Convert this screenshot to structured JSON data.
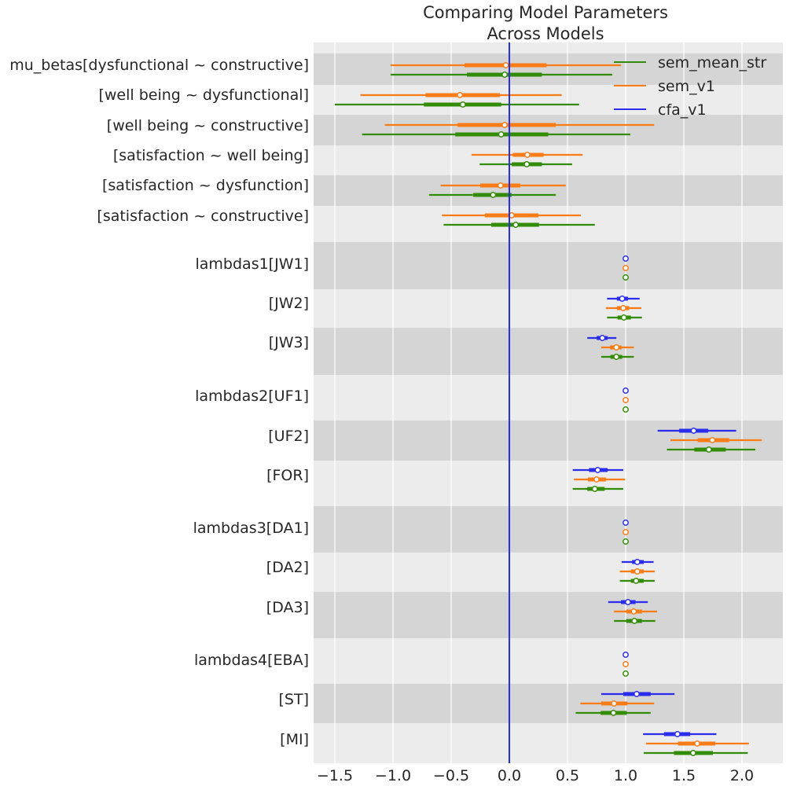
{
  "chart_data": {
    "type": "forest",
    "title": "Comparing Model Parameters\nAcross Models",
    "title_lines": [
      "Comparing Model Parameters",
      "Across Models"
    ],
    "xlabel": "",
    "ylabel": "",
    "xlim": [
      -1.65,
      2.35
    ],
    "xticks": [
      -1.5,
      -1.0,
      -0.5,
      0.0,
      0.5,
      1.0,
      1.5,
      2.0
    ],
    "xtick_labels": [
      "−1.5",
      "−1.0",
      "−0.5",
      "0.0",
      "0.5",
      "1.0",
      "1.5",
      "2.0"
    ],
    "grid": true,
    "reference_line": {
      "x": 0.0,
      "color": "#2a2eec"
    },
    "legend": {
      "position": "top-right",
      "entries": [
        {
          "name": "sem_mean_str",
          "color": "#328c06"
        },
        {
          "name": "sem_v1",
          "color": "#fa7c17"
        },
        {
          "name": "cfa_v1",
          "color": "#2a2eec"
        }
      ]
    },
    "colors": {
      "cfa_v1": "#2a2eec",
      "sem_v1": "#fa7c17",
      "sem_mean_str": "#328c06",
      "band_dark": "#d5d5d5",
      "band_light": "#ececec"
    },
    "rows": [
      {
        "label": "mu_betas[dysfunctional ~ constructive]",
        "group": "mu_betas",
        "shade": "dark",
        "estimates": {
          "sem_v1": {
            "lo": -1.02,
            "q1": -0.385,
            "mean": -0.03,
            "q3": 0.32,
            "hi": 0.96
          },
          "sem_mean_str": {
            "lo": -1.02,
            "q1": -0.365,
            "mean": -0.04,
            "q3": 0.28,
            "hi": 0.885
          }
        }
      },
      {
        "label": "[well being ~ dysfunctional]",
        "group": "mu_betas",
        "shade": "light",
        "estimates": {
          "sem_v1": {
            "lo": -1.28,
            "q1": -0.72,
            "mean": -0.425,
            "q3": -0.08,
            "hi": 0.45
          },
          "sem_mean_str": {
            "lo": -1.5,
            "q1": -0.735,
            "mean": -0.4,
            "q3": -0.07,
            "hi": 0.6
          }
        }
      },
      {
        "label": "[well being ~ constructive]",
        "group": "mu_betas",
        "shade": "dark",
        "estimates": {
          "sem_v1": {
            "lo": -1.07,
            "q1": -0.445,
            "mean": -0.04,
            "q3": 0.4,
            "hi": 1.245
          },
          "sem_mean_str": {
            "lo": -1.265,
            "q1": -0.465,
            "mean": -0.07,
            "q3": 0.335,
            "hi": 1.04
          }
        }
      },
      {
        "label": "[satisfaction ~ well being]",
        "group": "mu_betas",
        "shade": "light",
        "estimates": {
          "sem_v1": {
            "lo": -0.325,
            "q1": 0.03,
            "mean": 0.155,
            "q3": 0.295,
            "hi": 0.63
          },
          "sem_mean_str": {
            "lo": -0.255,
            "q1": 0.02,
            "mean": 0.15,
            "q3": 0.28,
            "hi": 0.54
          }
        }
      },
      {
        "label": "[satisfaction ~ dysfunction]",
        "group": "mu_betas",
        "shade": "dark",
        "estimates": {
          "sem_v1": {
            "lo": -0.59,
            "q1": -0.25,
            "mean": -0.075,
            "q3": 0.095,
            "hi": 0.485
          },
          "sem_mean_str": {
            "lo": -0.69,
            "q1": -0.31,
            "mean": -0.14,
            "q3": 0.02,
            "hi": 0.4
          }
        }
      },
      {
        "label": "[satisfaction ~ constructive]",
        "group": "mu_betas",
        "shade": "light",
        "estimates": {
          "sem_v1": {
            "lo": -0.58,
            "q1": -0.21,
            "mean": 0.02,
            "q3": 0.25,
            "hi": 0.615
          },
          "sem_mean_str": {
            "lo": -0.565,
            "q1": -0.155,
            "mean": 0.055,
            "q3": 0.255,
            "hi": 0.735
          }
        }
      },
      {
        "label": "lambdas1[JW1]",
        "group": "lambdas1",
        "shade": "dark",
        "estimates": {
          "cfa_v1": {
            "lo": 1.0,
            "q1": 1.0,
            "mean": 1.0,
            "q3": 1.0,
            "hi": 1.0
          },
          "sem_v1": {
            "lo": 1.0,
            "q1": 1.0,
            "mean": 1.0,
            "q3": 1.0,
            "hi": 1.0
          },
          "sem_mean_str": {
            "lo": 1.0,
            "q1": 1.0,
            "mean": 1.0,
            "q3": 1.0,
            "hi": 1.0
          }
        }
      },
      {
        "label": "[JW2]",
        "group": "lambdas1",
        "shade": "light",
        "estimates": {
          "cfa_v1": {
            "lo": 0.84,
            "q1": 0.925,
            "mean": 0.97,
            "q3": 1.02,
            "hi": 1.12
          },
          "sem_v1": {
            "lo": 0.83,
            "q1": 0.925,
            "mean": 0.98,
            "q3": 1.03,
            "hi": 1.135
          },
          "sem_mean_str": {
            "lo": 0.84,
            "q1": 0.93,
            "mean": 0.985,
            "q3": 1.045,
            "hi": 1.14
          }
        }
      },
      {
        "label": "[JW3]",
        "group": "lambdas1",
        "shade": "dark",
        "estimates": {
          "cfa_v1": {
            "lo": 0.67,
            "q1": 0.75,
            "mean": 0.8,
            "q3": 0.845,
            "hi": 0.92
          },
          "sem_v1": {
            "lo": 0.79,
            "q1": 0.865,
            "mean": 0.92,
            "q3": 0.965,
            "hi": 1.07
          },
          "sem_mean_str": {
            "lo": 0.79,
            "q1": 0.87,
            "mean": 0.92,
            "q3": 0.97,
            "hi": 1.07
          }
        }
      },
      {
        "label": "lambdas2[UF1]",
        "group": "lambdas2",
        "shade": "light",
        "estimates": {
          "cfa_v1": {
            "lo": 1.0,
            "q1": 1.0,
            "mean": 1.0,
            "q3": 1.0,
            "hi": 1.0
          },
          "sem_v1": {
            "lo": 1.0,
            "q1": 1.0,
            "mean": 1.0,
            "q3": 1.0,
            "hi": 1.0
          },
          "sem_mean_str": {
            "lo": 1.0,
            "q1": 1.0,
            "mean": 1.0,
            "q3": 1.0,
            "hi": 1.0
          }
        }
      },
      {
        "label": "[UF2]",
        "group": "lambdas2",
        "shade": "dark",
        "estimates": {
          "cfa_v1": {
            "lo": 1.275,
            "q1": 1.46,
            "mean": 1.585,
            "q3": 1.71,
            "hi": 1.95
          },
          "sem_v1": {
            "lo": 1.385,
            "q1": 1.62,
            "mean": 1.745,
            "q3": 1.89,
            "hi": 2.17
          },
          "sem_mean_str": {
            "lo": 1.355,
            "q1": 1.59,
            "mean": 1.715,
            "q3": 1.86,
            "hi": 2.115
          }
        }
      },
      {
        "label": "[FOR]",
        "group": "lambdas2",
        "shade": "light",
        "estimates": {
          "cfa_v1": {
            "lo": 0.545,
            "q1": 0.685,
            "mean": 0.76,
            "q3": 0.845,
            "hi": 0.98
          },
          "sem_v1": {
            "lo": 0.555,
            "q1": 0.675,
            "mean": 0.75,
            "q3": 0.83,
            "hi": 0.995
          },
          "sem_mean_str": {
            "lo": 0.545,
            "q1": 0.67,
            "mean": 0.735,
            "q3": 0.82,
            "hi": 0.98
          }
        }
      },
      {
        "label": "lambdas3[DA1]",
        "group": "lambdas3",
        "shade": "dark",
        "estimates": {
          "cfa_v1": {
            "lo": 1.0,
            "q1": 1.0,
            "mean": 1.0,
            "q3": 1.0,
            "hi": 1.0
          },
          "sem_v1": {
            "lo": 1.0,
            "q1": 1.0,
            "mean": 1.0,
            "q3": 1.0,
            "hi": 1.0
          },
          "sem_mean_str": {
            "lo": 1.0,
            "q1": 1.0,
            "mean": 1.0,
            "q3": 1.0,
            "hi": 1.0
          }
        }
      },
      {
        "label": "[DA2]",
        "group": "lambdas3",
        "shade": "light",
        "estimates": {
          "cfa_v1": {
            "lo": 0.965,
            "q1": 1.055,
            "mean": 1.1,
            "q3": 1.155,
            "hi": 1.24
          },
          "sem_v1": {
            "lo": 0.95,
            "q1": 1.045,
            "mean": 1.1,
            "q3": 1.155,
            "hi": 1.25
          },
          "sem_mean_str": {
            "lo": 0.95,
            "q1": 1.045,
            "mean": 1.09,
            "q3": 1.155,
            "hi": 1.25
          }
        }
      },
      {
        "label": "[DA3]",
        "group": "lambdas3",
        "shade": "dark",
        "estimates": {
          "cfa_v1": {
            "lo": 0.85,
            "q1": 0.96,
            "mean": 1.02,
            "q3": 1.085,
            "hi": 1.19
          },
          "sem_v1": {
            "lo": 0.9,
            "q1": 1.005,
            "mean": 1.07,
            "q3": 1.14,
            "hi": 1.27
          },
          "sem_mean_str": {
            "lo": 0.9,
            "q1": 1.005,
            "mean": 1.075,
            "q3": 1.14,
            "hi": 1.255
          }
        }
      },
      {
        "label": "lambdas4[EBA]",
        "group": "lambdas4",
        "shade": "light",
        "estimates": {
          "cfa_v1": {
            "lo": 1.0,
            "q1": 1.0,
            "mean": 1.0,
            "q3": 1.0,
            "hi": 1.0
          },
          "sem_v1": {
            "lo": 1.0,
            "q1": 1.0,
            "mean": 1.0,
            "q3": 1.0,
            "hi": 1.0
          },
          "sem_mean_str": {
            "lo": 1.0,
            "q1": 1.0,
            "mean": 1.0,
            "q3": 1.0,
            "hi": 1.0
          }
        }
      },
      {
        "label": "[ST]",
        "group": "lambdas4",
        "shade": "dark",
        "estimates": {
          "cfa_v1": {
            "lo": 0.79,
            "q1": 0.98,
            "mean": 1.095,
            "q3": 1.215,
            "hi": 1.42
          },
          "sem_v1": {
            "lo": 0.61,
            "q1": 0.79,
            "mean": 0.9,
            "q3": 1.015,
            "hi": 1.245
          },
          "sem_mean_str": {
            "lo": 0.57,
            "q1": 0.785,
            "mean": 0.895,
            "q3": 1.01,
            "hi": 1.215
          }
        }
      },
      {
        "label": "[MI]",
        "group": "lambdas4",
        "shade": "light",
        "estimates": {
          "cfa_v1": {
            "lo": 1.15,
            "q1": 1.33,
            "mean": 1.445,
            "q3": 1.555,
            "hi": 1.78
          },
          "sem_v1": {
            "lo": 1.175,
            "q1": 1.45,
            "mean": 1.615,
            "q3": 1.77,
            "hi": 2.06
          },
          "sem_mean_str": {
            "lo": 1.155,
            "q1": 1.415,
            "mean": 1.58,
            "q3": 1.75,
            "hi": 2.05
          }
        }
      }
    ],
    "model_order": [
      "cfa_v1",
      "sem_v1",
      "sem_mean_str"
    ]
  }
}
